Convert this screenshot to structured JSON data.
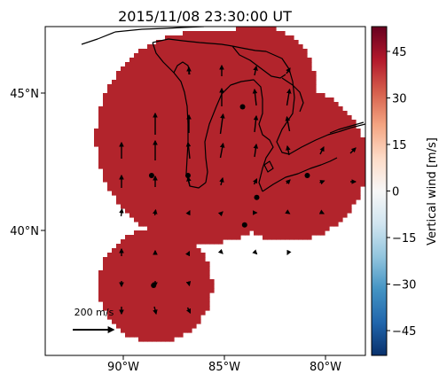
{
  "title": "2015/11/08 23:30:00 UT",
  "map": {
    "lat_ticks": [
      {
        "value": 45,
        "label": "45°N"
      },
      {
        "value": 40,
        "label": "40°N"
      }
    ],
    "lon_ticks": [
      {
        "value": -90,
        "label": "90°W"
      },
      {
        "value": -85,
        "label": "85°W"
      },
      {
        "value": -80,
        "label": "80°W"
      }
    ],
    "field_color": "#b2242c",
    "stations": [
      {
        "lon": -84.1,
        "lat": 44.5
      },
      {
        "lon": -88.6,
        "lat": 42.0
      },
      {
        "lon": -86.8,
        "lat": 42.0
      },
      {
        "lon": -80.9,
        "lat": 42.0
      },
      {
        "lon": -83.4,
        "lat": 41.2
      },
      {
        "lon": -84.0,
        "lat": 40.2
      },
      {
        "lon": -88.5,
        "lat": 38.0
      }
    ],
    "reference_vector": {
      "label": "200 m/s"
    }
  },
  "colorbar": {
    "label": "Vertical wind [m/s]",
    "range": [
      -53,
      53
    ],
    "colors": [
      "#08306b",
      "#2166ac",
      "#4393c3",
      "#92c5de",
      "#d1e5f0",
      "#f7f7f7",
      "#fddbc7",
      "#f4a582",
      "#d6604d",
      "#b2182b",
      "#67001f"
    ],
    "ticks": [
      {
        "value": 45,
        "label": "45"
      },
      {
        "value": 30,
        "label": "30"
      },
      {
        "value": 15,
        "label": "15"
      },
      {
        "value": 0,
        "label": "0"
      },
      {
        "value": -15,
        "label": "−15"
      },
      {
        "value": -30,
        "label": "−30"
      },
      {
        "value": -45,
        "label": "−45"
      }
    ]
  }
}
